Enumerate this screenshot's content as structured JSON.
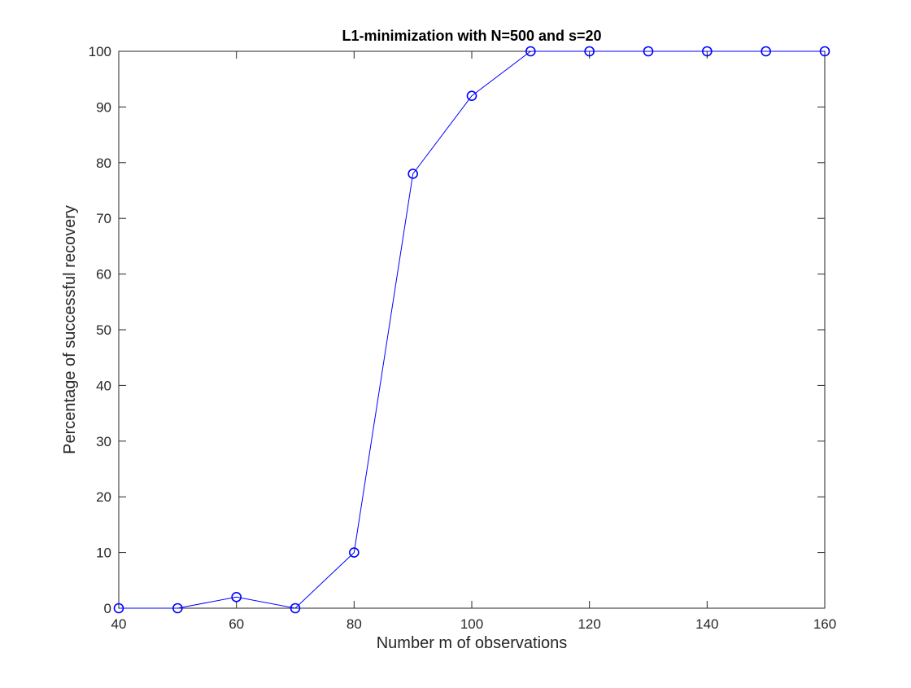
{
  "colors": {
    "series": "#0000ff",
    "axis": "#262626",
    "background": "#ffffff"
  },
  "chart_data": {
    "type": "line",
    "title": "L1-minimization with N=500 and s=20",
    "xlabel": "Number m of observations",
    "ylabel": "Percentage of successful recovery",
    "xlim": [
      40,
      160
    ],
    "ylim": [
      0,
      100
    ],
    "xticks": [
      40,
      60,
      80,
      100,
      120,
      140,
      160
    ],
    "yticks": [
      0,
      10,
      20,
      30,
      40,
      50,
      60,
      70,
      80,
      90,
      100
    ],
    "grid": false,
    "legend": "none",
    "series": [
      {
        "marker": "circle",
        "x": [
          40,
          50,
          60,
          70,
          80,
          90,
          100,
          110,
          120,
          130,
          140,
          150,
          160
        ],
        "y": [
          0,
          0,
          2,
          0,
          10,
          78,
          92,
          100,
          100,
          100,
          100,
          100,
          100
        ]
      }
    ]
  }
}
